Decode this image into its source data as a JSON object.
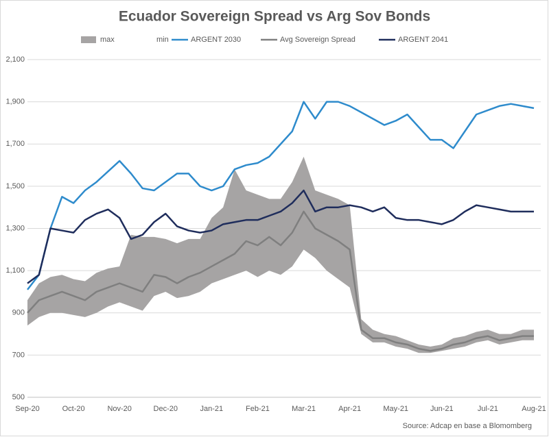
{
  "chart_data": {
    "type": "line",
    "title": "Ecuador Sovereign Spread vs Arg Sov Bonds",
    "source": "Source: Adcap en base a Blomomberg",
    "categories": [
      "Sep-20",
      null,
      null,
      null,
      "Oct-20",
      null,
      null,
      null,
      "Nov-20",
      null,
      null,
      null,
      "Dec-20",
      null,
      null,
      null,
      "Jan-21",
      null,
      null,
      null,
      "Feb-21",
      null,
      null,
      null,
      "Mar-21",
      null,
      null,
      null,
      "Apr-21",
      null,
      null,
      null,
      "May-21",
      null,
      null,
      null,
      "Jun-21",
      null,
      null,
      null,
      "Jul-21",
      null,
      null,
      null,
      "Aug-21"
    ],
    "ylim": [
      500,
      2100
    ],
    "yticks": [
      500,
      700,
      900,
      {
        "value": 1100,
        "label": "1,100"
      },
      {
        "value": 1300,
        "label": "1,300"
      },
      {
        "value": 1500,
        "label": "1,500"
      },
      {
        "value": 1700,
        "label": "1,700"
      },
      {
        "value": 1900,
        "label": "1,900"
      },
      {
        "value": 2100,
        "label": "2,100"
      }
    ],
    "grid": true,
    "legend": "top",
    "series": [
      {
        "name": "max",
        "color": "#a6a4a4",
        "area": true,
        "values": [
          960,
          1040,
          1070,
          1080,
          1060,
          1050,
          1090,
          1110,
          1120,
          1270,
          1260,
          1260,
          1250,
          1230,
          1250,
          1250,
          1350,
          1400,
          1580,
          1480,
          1460,
          1440,
          1440,
          1520,
          1640,
          1480,
          1460,
          1440,
          1410,
          870,
          820,
          800,
          790,
          770,
          750,
          740,
          750,
          780,
          790,
          810,
          820,
          800,
          800,
          820,
          820
        ]
      },
      {
        "name": "min",
        "color": "#ffffff",
        "area": true,
        "values": [
          840,
          880,
          900,
          900,
          890,
          880,
          900,
          930,
          950,
          930,
          910,
          980,
          1000,
          970,
          980,
          1000,
          1040,
          1060,
          1080,
          1100,
          1070,
          1100,
          1080,
          1120,
          1200,
          1160,
          1100,
          1060,
          1020,
          800,
          760,
          760,
          740,
          730,
          710,
          710,
          720,
          730,
          740,
          760,
          770,
          750,
          760,
          770,
          770
        ]
      },
      {
        "name": "ARGENT 2030",
        "color": "#2e8bcc",
        "values": [
          1010,
          1080,
          1300,
          1450,
          1420,
          1480,
          1520,
          1570,
          1620,
          1560,
          1490,
          1480,
          1520,
          1560,
          1560,
          1500,
          1480,
          1500,
          1580,
          1600,
          1610,
          1640,
          1700,
          1760,
          1900,
          1820,
          1900,
          1900,
          1880,
          1850,
          1820,
          1790,
          1810,
          1840,
          1780,
          1720,
          1720,
          1680,
          1760,
          1840,
          1860,
          1880,
          1890,
          1880,
          1870
        ]
      },
      {
        "name": "Avg Sovereign Spread",
        "color": "#7f7f7f",
        "values": [
          900,
          960,
          980,
          1000,
          980,
          960,
          1000,
          1020,
          1040,
          1020,
          1000,
          1080,
          1070,
          1040,
          1070,
          1090,
          1120,
          1150,
          1180,
          1240,
          1220,
          1260,
          1220,
          1280,
          1380,
          1300,
          1270,
          1240,
          1200,
          820,
          780,
          780,
          760,
          750,
          730,
          720,
          730,
          750,
          760,
          780,
          790,
          770,
          780,
          790,
          790
        ]
      },
      {
        "name": "ARGENT 2041",
        "color": "#1f2d5c",
        "values": [
          1040,
          1080,
          1300,
          1290,
          1280,
          1340,
          1370,
          1390,
          1350,
          1250,
          1270,
          1330,
          1370,
          1310,
          1290,
          1280,
          1290,
          1320,
          1330,
          1340,
          1340,
          1360,
          1380,
          1420,
          1480,
          1380,
          1400,
          1400,
          1410,
          1400,
          1380,
          1400,
          1350,
          1340,
          1340,
          1330,
          1320,
          1340,
          1380,
          1410,
          1400,
          1390,
          1380,
          1380,
          1380
        ]
      }
    ]
  }
}
